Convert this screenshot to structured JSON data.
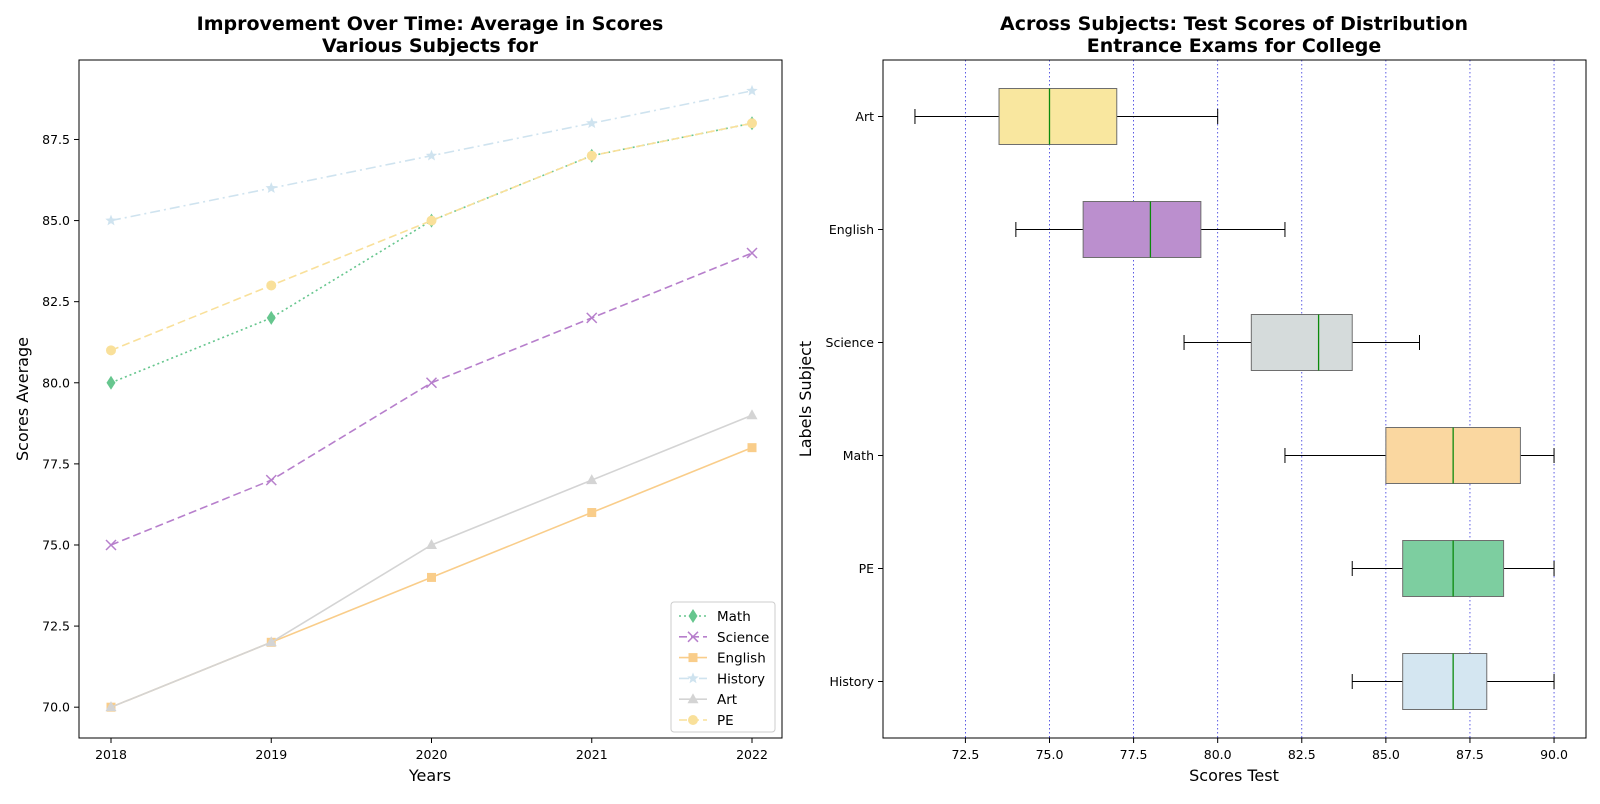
{
  "chart_data": [
    {
      "type": "line",
      "title_line1": "Improvement Over Time: Average in Scores",
      "title_line2": "Various Subjects for",
      "xlabel": "Years",
      "ylabel": "Scores Average",
      "x": [
        2018,
        2019,
        2020,
        2021,
        2022
      ],
      "x_ticks": [
        "2018",
        "2019",
        "2020",
        "2021",
        "2022"
      ],
      "y_ticks": [
        "70.0",
        "72.5",
        "75.0",
        "77.5",
        "80.0",
        "82.5",
        "85.0",
        "87.5"
      ],
      "ylim": [
        69.05,
        89.95
      ],
      "legend_position": "lower right",
      "series": [
        {
          "name": "Math",
          "values": [
            80,
            82,
            85,
            87,
            88
          ],
          "color": "#66c68e",
          "marker": "diamond",
          "dash": "dotted"
        },
        {
          "name": "Science",
          "values": [
            75,
            77,
            80,
            82,
            84
          ],
          "color": "#b77fcc",
          "marker": "x",
          "dash": "dashed"
        },
        {
          "name": "English",
          "values": [
            70,
            72,
            74,
            76,
            78
          ],
          "color": "#f9cd8a",
          "marker": "square",
          "dash": "solid"
        },
        {
          "name": "History",
          "values": [
            85,
            86,
            87,
            88,
            89
          ],
          "color": "#cfe3ef",
          "marker": "star",
          "dash": "dashdot"
        },
        {
          "name": "Art",
          "values": [
            70,
            72,
            75,
            77,
            79
          ],
          "color": "#d4d4d4",
          "marker": "triangle",
          "dash": "solid"
        },
        {
          "name": "PE",
          "values": [
            81,
            83,
            85,
            87,
            88
          ],
          "color": "#f9e09a",
          "marker": "circle",
          "dash": "dashed"
        }
      ]
    },
    {
      "type": "box",
      "orientation": "horizontal",
      "title_line1": "Across Subjects: Test Scores of Distribution",
      "title_line2": "Entrance Exams for College",
      "xlabel": "Scores Test",
      "ylabel": "Labels Subject",
      "x_ticks": [
        "72.5",
        "75.0",
        "77.5",
        "80.0",
        "82.5",
        "85.0",
        "87.5",
        "90.0"
      ],
      "xlim": [
        70.05,
        90.95
      ],
      "grid": "vertical dotted blue",
      "categories": [
        "Art",
        "English",
        "Science",
        "Math",
        "PE",
        "History"
      ],
      "boxes": [
        {
          "label": "Art",
          "min": 71,
          "q1": 73.5,
          "median": 75,
          "q3": 77,
          "max": 80,
          "color": "#f9e79f"
        },
        {
          "label": "English",
          "min": 74,
          "q1": 76,
          "median": 78,
          "q3": 79.5,
          "max": 82,
          "color": "#bb8fce"
        },
        {
          "label": "Science",
          "min": 79,
          "q1": 81,
          "median": 83,
          "q3": 84,
          "max": 86,
          "color": "#d5dbdb"
        },
        {
          "label": "Math",
          "min": 82,
          "q1": 85,
          "median": 87,
          "q3": 89,
          "max": 90,
          "color": "#fad7a0"
        },
        {
          "label": "PE",
          "min": 84,
          "q1": 85.5,
          "median": 87,
          "q3": 88.5,
          "max": 90,
          "color": "#7dcea0"
        },
        {
          "label": "History",
          "min": 84,
          "q1": 85.5,
          "median": 87,
          "q3": 88,
          "max": 90,
          "color": "#d4e6f1"
        }
      ]
    }
  ]
}
